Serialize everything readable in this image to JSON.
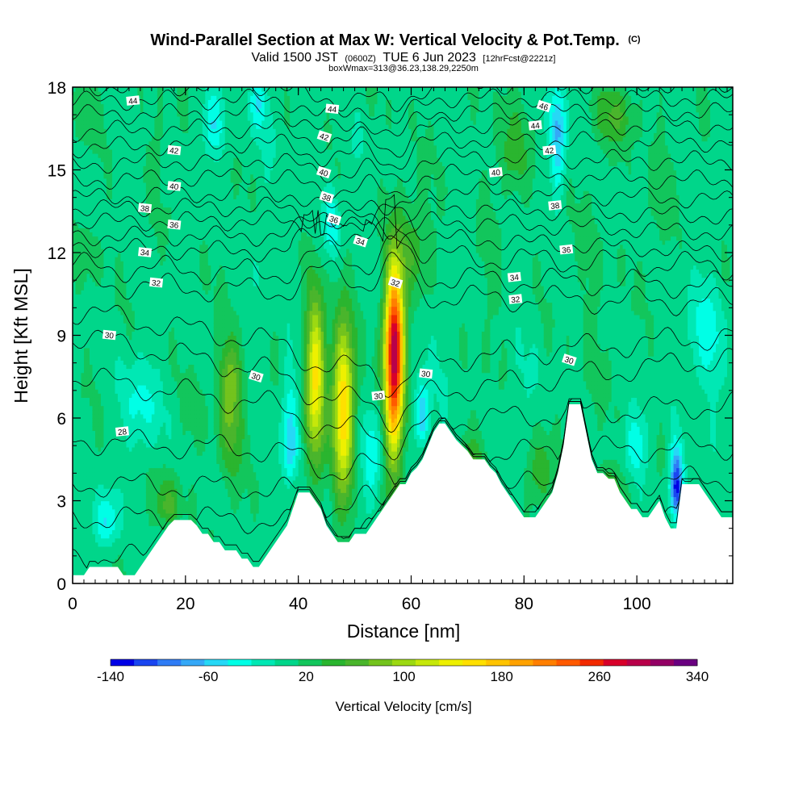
{
  "chart_data": {
    "type": "heatmap",
    "title": "Wind-Parallel Section at Max W: Vertical Velocity & Pot.Temp.",
    "title_suffix": "(C)",
    "subtitle_valid": "Valid 1500 JST",
    "subtitle_utc": "(0600Z)",
    "subtitle_date": "TUE 6 Jun 2023",
    "subtitle_fcst": "[12hrFcst@2221z]",
    "subtitle2": "boxWmax=313@36.23,138.29,2250m",
    "xlabel": "Distance [nm]",
    "ylabel": "Height [Kft MSL]",
    "xlim": [
      0,
      117
    ],
    "ylim": [
      0,
      18
    ],
    "x_ticks": [
      "0",
      "20",
      "40",
      "60",
      "80",
      "100"
    ],
    "y_ticks": [
      "0",
      "3",
      "6",
      "9",
      "12",
      "15",
      "18"
    ],
    "grid": false,
    "colorbar": {
      "title": "Vertical Velocity [cm/s]",
      "tick_labels": [
        "-140",
        "-60",
        "20",
        "100",
        "180",
        "260",
        "340"
      ],
      "min": -140,
      "max": 340,
      "step": 20,
      "colors": [
        "#0000e6",
        "#1a46f0",
        "#2f7cf5",
        "#35a8f7",
        "#26d8f6",
        "#00ffe6",
        "#00e8b4",
        "#00d68a",
        "#12c65c",
        "#2ab52f",
        "#4ab52c",
        "#73c31d",
        "#9cd912",
        "#c6e80a",
        "#eef000",
        "#ffe000",
        "#ffc400",
        "#ffa200",
        "#ff7f00",
        "#ff5a00",
        "#f22a00",
        "#d8002a",
        "#b8004a",
        "#930065",
        "#6a0080"
      ]
    },
    "terrain_kft": [
      [
        0,
        0.3
      ],
      [
        1,
        0.3
      ],
      [
        2,
        0.3
      ],
      [
        3,
        0.6
      ],
      [
        4,
        0.6
      ],
      [
        5,
        0.6
      ],
      [
        6,
        0.6
      ],
      [
        7,
        0.6
      ],
      [
        8,
        0.6
      ],
      [
        9,
        0.3
      ],
      [
        10,
        0.3
      ],
      [
        11,
        0.3
      ],
      [
        12,
        0.6
      ],
      [
        13,
        0.9
      ],
      [
        14,
        1.2
      ],
      [
        15,
        1.5
      ],
      [
        16,
        1.8
      ],
      [
        17,
        2.1
      ],
      [
        18,
        2.3
      ],
      [
        19,
        2.3
      ],
      [
        20,
        2.3
      ],
      [
        21,
        2.3
      ],
      [
        22,
        2.1
      ],
      [
        23,
        1.8
      ],
      [
        24,
        1.8
      ],
      [
        25,
        1.5
      ],
      [
        26,
        1.5
      ],
      [
        27,
        1.2
      ],
      [
        28,
        1.2
      ],
      [
        29,
        1.2
      ],
      [
        30,
        0.9
      ],
      [
        31,
        0.9
      ],
      [
        32,
        0.6
      ],
      [
        33,
        0.6
      ],
      [
        34,
        0.9
      ],
      [
        35,
        1.2
      ],
      [
        36,
        1.5
      ],
      [
        37,
        1.8
      ],
      [
        38,
        2.1
      ],
      [
        39,
        2.7
      ],
      [
        40,
        3.3
      ],
      [
        41,
        3.3
      ],
      [
        42,
        3.3
      ],
      [
        43,
        3.0
      ],
      [
        44,
        2.7
      ],
      [
        45,
        2.1
      ],
      [
        46,
        1.8
      ],
      [
        47,
        1.5
      ],
      [
        48,
        1.5
      ],
      [
        49,
        1.5
      ],
      [
        50,
        1.8
      ],
      [
        51,
        1.8
      ],
      [
        52,
        1.8
      ],
      [
        53,
        2.1
      ],
      [
        54,
        2.4
      ],
      [
        55,
        2.7
      ],
      [
        56,
        3.0
      ],
      [
        57,
        3.3
      ],
      [
        58,
        3.6
      ],
      [
        59,
        3.6
      ],
      [
        60,
        4.0
      ],
      [
        61,
        4.2
      ],
      [
        62,
        4.5
      ],
      [
        63,
        5.0
      ],
      [
        64,
        5.5
      ],
      [
        65,
        5.8
      ],
      [
        66,
        5.8
      ],
      [
        67,
        5.5
      ],
      [
        68,
        5.2
      ],
      [
        69,
        5.0
      ],
      [
        70,
        4.8
      ],
      [
        71,
        4.5
      ],
      [
        72,
        4.5
      ],
      [
        73,
        4.5
      ],
      [
        74,
        4.2
      ],
      [
        75,
        4.0
      ],
      [
        76,
        3.6
      ],
      [
        77,
        3.3
      ],
      [
        78,
        3.0
      ],
      [
        79,
        2.7
      ],
      [
        80,
        2.4
      ],
      [
        81,
        2.4
      ],
      [
        82,
        2.4
      ],
      [
        83,
        2.7
      ],
      [
        84,
        3.0
      ],
      [
        85,
        3.3
      ],
      [
        86,
        4.0
      ],
      [
        87,
        5.0
      ],
      [
        88,
        6.5
      ],
      [
        89,
        6.5
      ],
      [
        90,
        6.5
      ],
      [
        91,
        5.5
      ],
      [
        92,
        4.5
      ],
      [
        93,
        4.0
      ],
      [
        94,
        4.0
      ],
      [
        95,
        3.8
      ],
      [
        96,
        3.8
      ],
      [
        97,
        3.3
      ],
      [
        98,
        3.0
      ],
      [
        99,
        2.7
      ],
      [
        100,
        2.7
      ],
      [
        101,
        2.4
      ],
      [
        102,
        2.4
      ],
      [
        103,
        2.7
      ],
      [
        104,
        3.0
      ],
      [
        105,
        2.4
      ],
      [
        106,
        2.0
      ],
      [
        107,
        2.0
      ],
      [
        108,
        3.6
      ],
      [
        109,
        3.6
      ],
      [
        110,
        3.6
      ],
      [
        111,
        3.6
      ],
      [
        112,
        3.3
      ],
      [
        113,
        3.0
      ],
      [
        114,
        2.7
      ],
      [
        115,
        2.4
      ],
      [
        116,
        2.4
      ],
      [
        117,
        2.4
      ]
    ],
    "updrafts": [
      {
        "x": 57.0,
        "z": 8.5,
        "peak_w": 313,
        "wx": 1.2,
        "zmin": 3.2,
        "zmax": 12.5
      },
      {
        "x": 48.0,
        "z": 6.5,
        "peak_w": 170,
        "wx": 1.3,
        "zmin": 2.0,
        "zmax": 10.8
      },
      {
        "x": 43.0,
        "z": 7.5,
        "peak_w": 150,
        "wx": 1.2,
        "zmin": 3.0,
        "zmax": 11.5
      },
      {
        "x": 28.0,
        "z": 7.2,
        "peak_w": 80,
        "wx": 1.5,
        "zmin": 3.0,
        "zmax": 9.5
      },
      {
        "x": 17.0,
        "z": 2.8,
        "peak_w": 50,
        "wx": 1.6,
        "zmin": 2.0,
        "zmax": 4.5
      },
      {
        "x": 71.0,
        "z": 4.0,
        "peak_w": 50,
        "wx": 1.6,
        "zmin": 2.0,
        "zmax": 6.0
      },
      {
        "x": 60.0,
        "z": 12.0,
        "peak_w": 40,
        "wx": 2.5,
        "zmin": 10.0,
        "zmax": 15.0
      },
      {
        "x": 95.0,
        "z": 3.2,
        "peak_w": 55,
        "wx": 2.0,
        "zmin": 2.5,
        "zmax": 4.5
      },
      {
        "x": 83.0,
        "z": 4.0,
        "peak_w": 45,
        "wx": 1.5,
        "zmin": 2.4,
        "zmax": 6.0
      },
      {
        "x": 96.0,
        "z": 17.0,
        "peak_w": 45,
        "wx": 2.5,
        "zmin": 15.5,
        "zmax": 18.5
      },
      {
        "x": 78.0,
        "z": 15.5,
        "peak_w": 35,
        "wx": 2.0,
        "zmin": 13.5,
        "zmax": 18.0
      }
    ],
    "downdrafts": [
      {
        "x": 107.0,
        "z": 3.5,
        "peak_w": -140,
        "wx": 0.8,
        "zmin": 2.0,
        "zmax": 5.5
      },
      {
        "x": 38.5,
        "z": 5.0,
        "peak_w": -65,
        "wx": 1.0,
        "zmin": 3.3,
        "zmax": 8.5
      },
      {
        "x": 53.0,
        "z": 4.5,
        "peak_w": -45,
        "wx": 1.2,
        "zmin": 2.4,
        "zmax": 7.0
      },
      {
        "x": 62.0,
        "z": 6.0,
        "peak_w": -65,
        "wx": 1.0,
        "zmin": 4.8,
        "zmax": 8.0
      },
      {
        "x": 86.0,
        "z": 16.5,
        "peak_w": -70,
        "wx": 1.0,
        "zmin": 13.5,
        "zmax": 19.0
      },
      {
        "x": 6.0,
        "z": 2.2,
        "peak_w": -50,
        "wx": 1.5,
        "zmin": 1.0,
        "zmax": 3.8
      },
      {
        "x": 46.0,
        "z": 13.0,
        "peak_w": -40,
        "wx": 1.0,
        "zmin": 11.5,
        "zmax": 15.0
      },
      {
        "x": 25.0,
        "z": 16.5,
        "peak_w": -40,
        "wx": 1.5,
        "zmin": 15.0,
        "zmax": 18.5
      },
      {
        "x": 33.0,
        "z": 17.5,
        "peak_w": -40,
        "wx": 1.2,
        "zmin": 16.0,
        "zmax": 18.5
      },
      {
        "x": 100.0,
        "z": 5.0,
        "peak_w": -40,
        "wx": 1.5,
        "zmin": 3.5,
        "zmax": 7.0
      },
      {
        "x": 12.0,
        "z": 6.5,
        "peak_w": -30,
        "wx": 2.5,
        "zmin": 4.0,
        "zmax": 9.0
      },
      {
        "x": 112.0,
        "z": 9.0,
        "peak_w": -30,
        "wx": 2.5,
        "zmin": 6.0,
        "zmax": 12.0
      }
    ],
    "isentropes_c": [
      {
        "theta": 28,
        "left_kft": 1.0,
        "mid_kft": 0.6,
        "right_kft": 1.5
      },
      {
        "theta": 28,
        "left_kft": 2.4,
        "mid_kft": 2.2,
        "right_kft": 2.6
      },
      {
        "theta": 28,
        "left_kft": 3.6,
        "mid_kft": 3.4,
        "right_kft": 3.8
      },
      {
        "theta": 28,
        "left_kft": 5.2,
        "mid_kft": 4.6,
        "right_kft": 5.0
      },
      {
        "theta": 30,
        "left_kft": 7.5,
        "mid_kft": 5.8,
        "right_kft": 6.5
      },
      {
        "theta": 30,
        "left_kft": 9.0,
        "mid_kft": 6.8,
        "right_kft": 8.2
      },
      {
        "theta": 30,
        "left_kft": 9.9,
        "mid_kft": 8.0,
        "right_kft": 9.0
      },
      {
        "theta": 32,
        "left_kft": 10.9,
        "mid_kft": 10.4,
        "right_kft": 10.2
      },
      {
        "theta": 32,
        "left_kft": 11.5,
        "mid_kft": 11.1,
        "right_kft": 10.8
      },
      {
        "theta": 34,
        "left_kft": 12.2,
        "mid_kft": 11.9,
        "right_kft": 11.5
      },
      {
        "theta": 34,
        "left_kft": 12.6,
        "mid_kft": 12.6,
        "right_kft": 12.0
      },
      {
        "theta": 36,
        "left_kft": 13.1,
        "mid_kft": 13.2,
        "right_kft": 12.7
      },
      {
        "theta": 36,
        "left_kft": 13.6,
        "mid_kft": 13.7,
        "right_kft": 13.3
      },
      {
        "theta": 38,
        "left_kft": 14.0,
        "mid_kft": 14.3,
        "right_kft": 13.9
      },
      {
        "theta": 40,
        "left_kft": 14.6,
        "mid_kft": 14.9,
        "right_kft": 14.6
      },
      {
        "theta": 40,
        "left_kft": 15.2,
        "mid_kft": 15.5,
        "right_kft": 15.3
      },
      {
        "theta": 42,
        "left_kft": 15.8,
        "mid_kft": 16.1,
        "right_kft": 16.0
      },
      {
        "theta": 42,
        "left_kft": 16.4,
        "mid_kft": 16.6,
        "right_kft": 16.6
      },
      {
        "theta": 44,
        "left_kft": 17.0,
        "mid_kft": 17.1,
        "right_kft": 17.1
      },
      {
        "theta": 44,
        "left_kft": 17.5,
        "mid_kft": 17.6,
        "right_kft": 17.6
      },
      {
        "theta": 46,
        "left_kft": 18.0,
        "mid_kft": 18.1,
        "right_kft": 18.1
      }
    ],
    "contour_labels": [
      {
        "text": "44",
        "x": 10.7,
        "y": 17.5
      },
      {
        "text": "44",
        "x": 46.0,
        "y": 17.2
      },
      {
        "text": "46",
        "x": 83.5,
        "y": 17.3
      },
      {
        "text": "44",
        "x": 82.0,
        "y": 16.6
      },
      {
        "text": "42",
        "x": 18.0,
        "y": 15.7
      },
      {
        "text": "42",
        "x": 44.6,
        "y": 16.2
      },
      {
        "text": "42",
        "x": 84.5,
        "y": 15.7
      },
      {
        "text": "40",
        "x": 18.0,
        "y": 14.4
      },
      {
        "text": "40",
        "x": 44.5,
        "y": 14.9
      },
      {
        "text": "40",
        "x": 75.0,
        "y": 14.9
      },
      {
        "text": "38",
        "x": 12.8,
        "y": 13.6
      },
      {
        "text": "38",
        "x": 45.0,
        "y": 14.0
      },
      {
        "text": "38",
        "x": 85.5,
        "y": 13.7
      },
      {
        "text": "36",
        "x": 18.0,
        "y": 13.0
      },
      {
        "text": "36",
        "x": 46.3,
        "y": 13.2
      },
      {
        "text": "36",
        "x": 87.5,
        "y": 12.1
      },
      {
        "text": "34",
        "x": 12.8,
        "y": 12.0
      },
      {
        "text": "34",
        "x": 51.0,
        "y": 12.4
      },
      {
        "text": "34",
        "x": 78.3,
        "y": 11.1
      },
      {
        "text": "32",
        "x": 14.8,
        "y": 10.9
      },
      {
        "text": "32",
        "x": 57.2,
        "y": 10.9
      },
      {
        "text": "32",
        "x": 78.5,
        "y": 10.3
      },
      {
        "text": "30",
        "x": 6.5,
        "y": 9.0
      },
      {
        "text": "30",
        "x": 32.5,
        "y": 7.5
      },
      {
        "text": "30",
        "x": 54.2,
        "y": 6.8
      },
      {
        "text": "30",
        "x": 62.6,
        "y": 7.6
      },
      {
        "text": "30",
        "x": 88.0,
        "y": 8.1
      },
      {
        "text": "28",
        "x": 8.8,
        "y": 5.5
      }
    ]
  }
}
